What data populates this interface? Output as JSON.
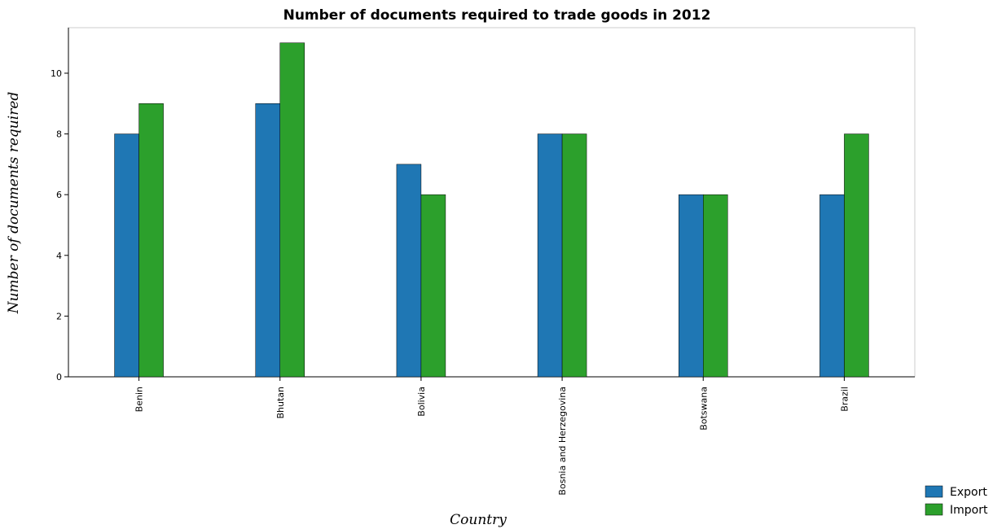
{
  "chart_data": {
    "type": "bar",
    "title": "Number of documents required to trade goods in 2012",
    "xlabel": "Country",
    "ylabel": "Number of documents required",
    "categories": [
      "Benin",
      "Bhutan",
      "Bolivia",
      "Bosnia and Herzegovina",
      "Botswana",
      "Brazil"
    ],
    "series": [
      {
        "name": "Export",
        "color": "#1f77b4",
        "values": [
          8,
          9,
          7,
          8,
          6,
          6
        ]
      },
      {
        "name": "Import",
        "color": "#2ca02c",
        "values": [
          9,
          11,
          6,
          8,
          6,
          8
        ]
      }
    ],
    "ylim": [
      0,
      11.5
    ],
    "yticks": [
      0,
      2,
      4,
      6,
      8,
      10
    ],
    "grid": false,
    "legend_position": "bottom-right"
  }
}
